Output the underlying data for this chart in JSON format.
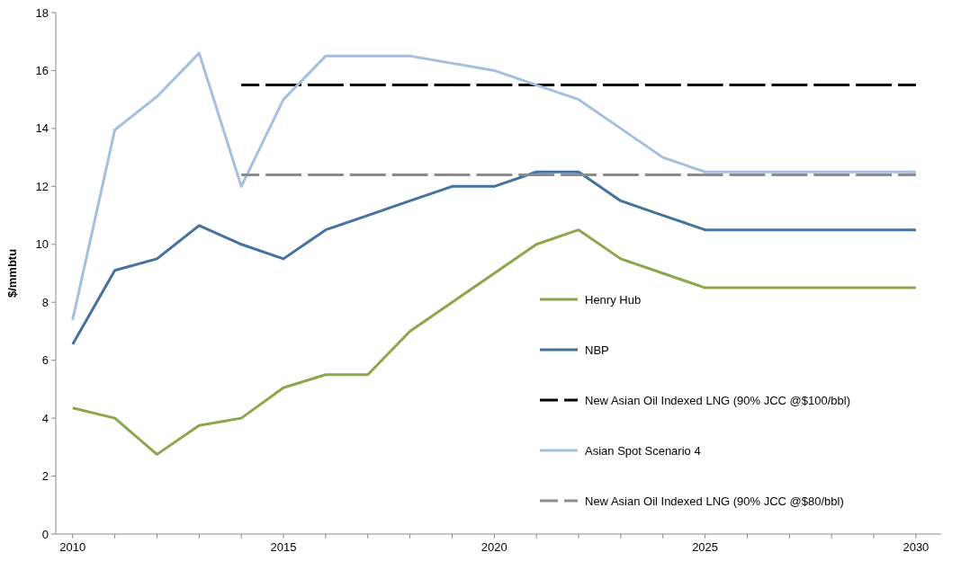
{
  "chart_data": {
    "type": "line",
    "ylabel": "$/mmbtu",
    "x": [
      2010,
      2011,
      2012,
      2013,
      2014,
      2015,
      2016,
      2017,
      2018,
      2019,
      2020,
      2021,
      2022,
      2023,
      2024,
      2025,
      2026,
      2027,
      2028,
      2029,
      2030
    ],
    "series": [
      {
        "name": "Henry Hub",
        "color": "#8da64b",
        "values": [
          4.35,
          4.0,
          2.75,
          3.75,
          4.0,
          5.05,
          5.5,
          5.5,
          7.0,
          8.0,
          9.0,
          10.0,
          10.5,
          9.5,
          9.0,
          8.5,
          8.5,
          8.5,
          8.5,
          8.5,
          8.5
        ]
      },
      {
        "name": "NBP",
        "color": "#4571a0",
        "values": [
          6.55,
          9.1,
          9.5,
          10.65,
          10.0,
          9.5,
          10.5,
          11.0,
          11.5,
          12.0,
          12.0,
          12.5,
          12.5,
          11.5,
          11.0,
          10.5,
          10.5,
          10.5,
          10.5,
          10.5,
          10.5
        ]
      },
      {
        "name": "New Asian Oil Indexed LNG (90% JCC @$100/bbl)",
        "color": "#000000",
        "line_style": "dashed",
        "x": [
          2014,
          2015,
          2016,
          2017,
          2018,
          2019,
          2020,
          2021,
          2022,
          2023,
          2024,
          2025,
          2026,
          2027,
          2028,
          2029,
          2030
        ],
        "values": [
          15.5,
          15.5,
          15.5,
          15.5,
          15.5,
          15.5,
          15.5,
          15.5,
          15.5,
          15.5,
          15.5,
          15.5,
          15.5,
          15.5,
          15.5,
          15.5,
          15.5
        ]
      },
      {
        "name": "Asian Spot Scenario 4",
        "color": "#a6bfdf",
        "values": [
          7.4,
          13.95,
          15.1,
          16.6,
          12.0,
          15.0,
          16.5,
          16.5,
          16.5,
          16.25,
          16.0,
          15.5,
          15.0,
          14.0,
          13.0,
          12.5,
          12.5,
          12.5,
          12.5,
          12.5,
          12.5
        ]
      },
      {
        "name": "New Asian Oil Indexed LNG (90% JCC @$80/bbl)",
        "color": "#8c8c8c",
        "line_style": "dashed",
        "x": [
          2014,
          2015,
          2016,
          2017,
          2018,
          2019,
          2020,
          2021,
          2022,
          2023,
          2024,
          2025,
          2026,
          2027,
          2028,
          2029,
          2030
        ],
        "values": [
          12.4,
          12.4,
          12.4,
          12.4,
          12.4,
          12.4,
          12.4,
          12.4,
          12.4,
          12.4,
          12.4,
          12.4,
          12.4,
          12.4,
          12.4,
          12.4,
          12.4
        ]
      }
    ],
    "xlim": [
      2009.6,
      2030.6
    ],
    "xticks": [
      2010,
      {
        "value": 2011,
        "label": null
      },
      {
        "value": 2012,
        "label": null
      },
      {
        "value": 2013,
        "label": null
      },
      {
        "value": 2014,
        "label": null
      },
      2015,
      {
        "value": 2016,
        "label": null
      },
      {
        "value": 2017,
        "label": null
      },
      {
        "value": 2018,
        "label": null
      },
      {
        "value": 2019,
        "label": null
      },
      2020,
      {
        "value": 2021,
        "label": null
      },
      {
        "value": 2022,
        "label": null
      },
      {
        "value": 2023,
        "label": null
      },
      {
        "value": 2024,
        "label": null
      },
      2025,
      {
        "value": 2026,
        "label": null
      },
      {
        "value": 2027,
        "label": null
      },
      {
        "value": 2028,
        "label": null
      },
      {
        "value": 2029,
        "label": null
      },
      2030
    ],
    "ylim": [
      0,
      18
    ],
    "yticks": [
      0,
      2,
      4,
      6,
      8,
      10,
      12,
      14,
      16,
      18
    ],
    "grid": false,
    "legend": "right",
    "marker": "none",
    "line_style": "solid"
  }
}
